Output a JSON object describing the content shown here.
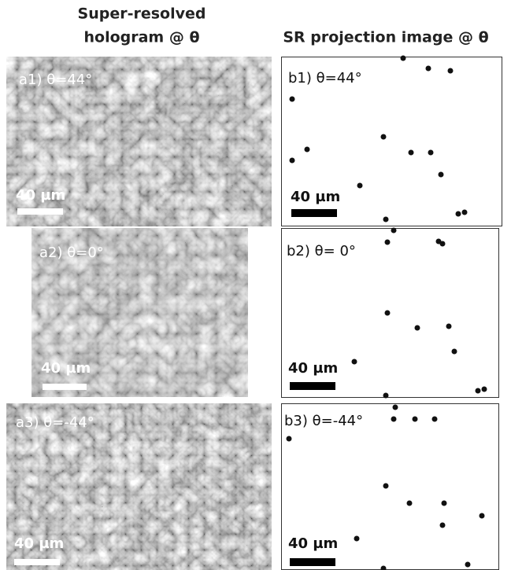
{
  "header": {
    "left": [
      "Super-resolved",
      "hologram @ θ"
    ],
    "right": "SR projection image @ θ"
  },
  "panels": {
    "a": [
      {
        "label": "a1) θ=44°",
        "scale": "40 µm"
      },
      {
        "label": "a2) θ=0°",
        "scale": "40 µm"
      },
      {
        "label": "a3) θ=-44°",
        "scale": "40 µm"
      }
    ],
    "b": [
      {
        "label": "b1) θ=44°",
        "scale": "40 µm"
      },
      {
        "label": "b2) θ= 0°",
        "scale": "40 µm"
      },
      {
        "label": "b3) θ=-44°",
        "scale": "40 µm"
      }
    ]
  }
}
